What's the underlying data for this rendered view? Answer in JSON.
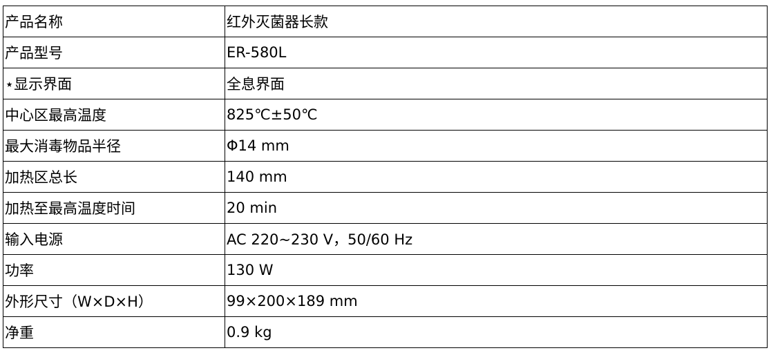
{
  "rows": [
    {
      "label": "产品名称",
      "value": "红外灭菌器长款"
    },
    {
      "label": "产品型号",
      "value": "ER-580L"
    },
    {
      "label": "⋆显示界面",
      "value": "全息界面"
    },
    {
      "label": "中心区最高温度",
      "value": "825℃±50℃"
    },
    {
      "label": "最大消毒物品半径",
      "value": "Φ14 mm"
    },
    {
      "label": "加热区总长",
      "value": "140 mm"
    },
    {
      "label": "加热至最高温度时间",
      "value": "20 min"
    },
    {
      "label": "输入电源",
      "value": "AC 220~230 V，50/60 Hz"
    },
    {
      "label": "功率",
      "value": "130 W"
    },
    {
      "label": "外形尺寸（W×D×H）",
      "value": "99×200×189 mm"
    },
    {
      "label": "净重",
      "value": "0.9 kg"
    }
  ]
}
